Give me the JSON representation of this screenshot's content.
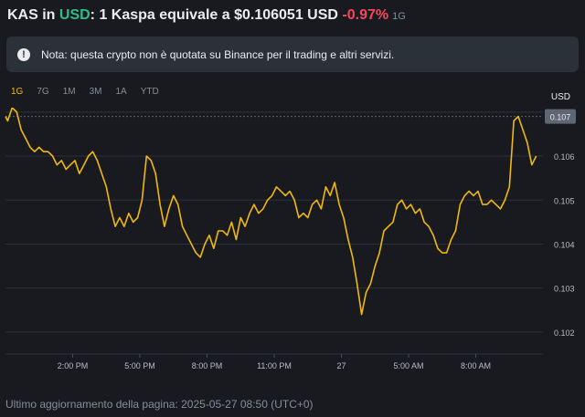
{
  "header": {
    "coin": "KAS",
    "in_word": " in ",
    "quote": "USD",
    "text": ": 1 Kaspa equivale a $0.106051 USD ",
    "change": "-0.97%",
    "timeframe": "1G"
  },
  "note": {
    "icon": "exclamation-icon",
    "text": "Nota: questa crypto non è quotata su Binance per il trading e altri servizi."
  },
  "tabs": [
    {
      "label": "1G",
      "active": true
    },
    {
      "label": "7G",
      "active": false
    },
    {
      "label": "1M",
      "active": false
    },
    {
      "label": "3M",
      "active": false
    },
    {
      "label": "1A",
      "active": false
    },
    {
      "label": "YTD",
      "active": false
    }
  ],
  "unit_label": "USD",
  "footer": "Ultimo aggiornamento della pagina: 2025-05-27 08:50 (UTC+0)",
  "chart_data": {
    "type": "line",
    "line_color": "#f0b90b",
    "current_price_label": "0.107",
    "current_price": 0.1069,
    "ylim": [
      0.1015,
      0.1071
    ],
    "y_ticks": [
      0.107,
      0.106,
      0.105,
      0.104,
      0.103,
      0.102
    ],
    "y_tick_labels": [
      "0.107",
      "0.106",
      "0.105",
      "0.104",
      "0.103",
      "0.102"
    ],
    "x_range": [
      0,
      24
    ],
    "x_ticks": [
      3,
      6,
      9,
      12,
      15,
      18,
      21
    ],
    "x_tick_labels": [
      "2:00 PM",
      "5:00 PM",
      "8:00 PM",
      "11:00 PM",
      "27",
      "5:00 AM",
      "8:00 AM"
    ],
    "points": [
      [
        0,
        0.1069
      ],
      [
        0.1,
        0.1068
      ],
      [
        0.3,
        0.1071
      ],
      [
        0.5,
        0.107
      ],
      [
        0.7,
        0.1066
      ],
      [
        0.9,
        0.1064
      ],
      [
        1.1,
        0.1062
      ],
      [
        1.3,
        0.1061
      ],
      [
        1.5,
        0.1062
      ],
      [
        1.7,
        0.1061
      ],
      [
        1.9,
        0.1061
      ],
      [
        2.1,
        0.106
      ],
      [
        2.3,
        0.1058
      ],
      [
        2.5,
        0.1059
      ],
      [
        2.7,
        0.1057
      ],
      [
        2.9,
        0.1058
      ],
      [
        3.1,
        0.1059
      ],
      [
        3.3,
        0.1056
      ],
      [
        3.5,
        0.1058
      ],
      [
        3.7,
        0.106
      ],
      [
        3.9,
        0.1061
      ],
      [
        4.1,
        0.1059
      ],
      [
        4.3,
        0.1056
      ],
      [
        4.5,
        0.1053
      ],
      [
        4.7,
        0.1048
      ],
      [
        4.9,
        0.1044
      ],
      [
        5.1,
        0.1046
      ],
      [
        5.3,
        0.1044
      ],
      [
        5.5,
        0.1047
      ],
      [
        5.7,
        0.1045
      ],
      [
        5.9,
        0.1046
      ],
      [
        6.1,
        0.105
      ],
      [
        6.3,
        0.106
      ],
      [
        6.5,
        0.1059
      ],
      [
        6.7,
        0.1056
      ],
      [
        6.9,
        0.1049
      ],
      [
        7.1,
        0.1044
      ],
      [
        7.3,
        0.1048
      ],
      [
        7.5,
        0.1051
      ],
      [
        7.7,
        0.1049
      ],
      [
        7.9,
        0.1044
      ],
      [
        8.1,
        0.1042
      ],
      [
        8.3,
        0.104
      ],
      [
        8.5,
        0.1038
      ],
      [
        8.7,
        0.1037
      ],
      [
        8.9,
        0.104
      ],
      [
        9.1,
        0.1042
      ],
      [
        9.3,
        0.1039
      ],
      [
        9.5,
        0.1043
      ],
      [
        9.7,
        0.1043
      ],
      [
        9.9,
        0.1042
      ],
      [
        10.1,
        0.1045
      ],
      [
        10.3,
        0.1041
      ],
      [
        10.5,
        0.1046
      ],
      [
        10.7,
        0.1044
      ],
      [
        10.9,
        0.1047
      ],
      [
        11.1,
        0.1049
      ],
      [
        11.3,
        0.1047
      ],
      [
        11.5,
        0.1048
      ],
      [
        11.7,
        0.105
      ],
      [
        11.9,
        0.1051
      ],
      [
        12.1,
        0.1053
      ],
      [
        12.3,
        0.1052
      ],
      [
        12.5,
        0.1051
      ],
      [
        12.7,
        0.1052
      ],
      [
        12.9,
        0.105
      ],
      [
        13.1,
        0.1046
      ],
      [
        13.3,
        0.1047
      ],
      [
        13.5,
        0.1046
      ],
      [
        13.7,
        0.1049
      ],
      [
        13.9,
        0.105
      ],
      [
        14.1,
        0.1048
      ],
      [
        14.3,
        0.1053
      ],
      [
        14.5,
        0.1051
      ],
      [
        14.7,
        0.1054
      ],
      [
        14.9,
        0.1049
      ],
      [
        15.1,
        0.1046
      ],
      [
        15.3,
        0.1041
      ],
      [
        15.5,
        0.1037
      ],
      [
        15.7,
        0.1031
      ],
      [
        15.9,
        0.1024
      ],
      [
        16.1,
        0.1029
      ],
      [
        16.3,
        0.1031
      ],
      [
        16.5,
        0.1035
      ],
      [
        16.7,
        0.1038
      ],
      [
        16.9,
        0.1043
      ],
      [
        17.1,
        0.1044
      ],
      [
        17.3,
        0.1045
      ],
      [
        17.5,
        0.1049
      ],
      [
        17.7,
        0.105
      ],
      [
        17.9,
        0.1048
      ],
      [
        18.1,
        0.1049
      ],
      [
        18.3,
        0.1047
      ],
      [
        18.5,
        0.1048
      ],
      [
        18.7,
        0.1045
      ],
      [
        18.9,
        0.1044
      ],
      [
        19.1,
        0.1042
      ],
      [
        19.3,
        0.1039
      ],
      [
        19.5,
        0.1038
      ],
      [
        19.7,
        0.1038
      ],
      [
        19.9,
        0.1041
      ],
      [
        20.1,
        0.1043
      ],
      [
        20.3,
        0.1049
      ],
      [
        20.5,
        0.1051
      ],
      [
        20.7,
        0.1052
      ],
      [
        20.9,
        0.1051
      ],
      [
        21.1,
        0.1052
      ],
      [
        21.3,
        0.1049
      ],
      [
        21.5,
        0.1049
      ],
      [
        21.7,
        0.105
      ],
      [
        21.9,
        0.1049
      ],
      [
        22.1,
        0.1048
      ],
      [
        22.3,
        0.105
      ],
      [
        22.5,
        0.1053
      ],
      [
        22.7,
        0.1068
      ],
      [
        22.9,
        0.1069
      ],
      [
        23.1,
        0.1066
      ],
      [
        23.3,
        0.1063
      ],
      [
        23.5,
        0.1058
      ],
      [
        23.7,
        0.106
      ]
    ]
  }
}
